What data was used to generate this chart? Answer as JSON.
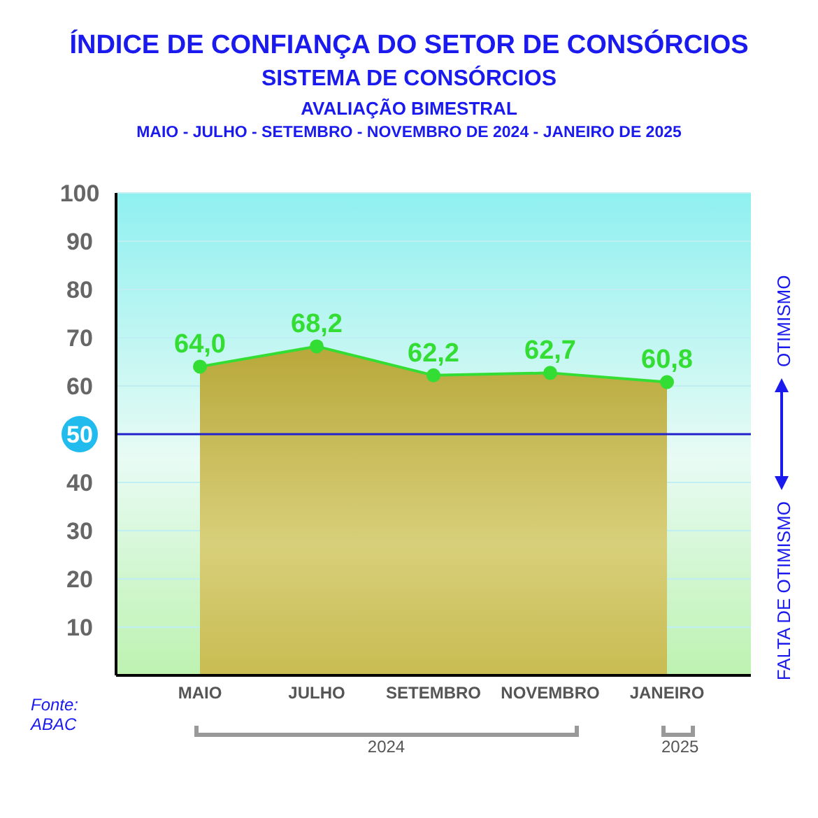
{
  "chart_data": {
    "type": "area",
    "title": "ÍNDICE DE CONFIANÇA DO SETOR DE CONSÓRCIOS",
    "subtitle": "SISTEMA DE CONSÓRCIOS",
    "categories": [
      "MAIO",
      "JULHO",
      "SETEMBRO",
      "NOVEMBRO",
      "JANEIRO"
    ],
    "series": [
      {
        "color": "#33dd33",
        "values": [
          64.0,
          68.2,
          62.2,
          62.7,
          60.8
        ],
        "value_labels": [
          "64,0",
          "68,2",
          "62,2",
          "62,7",
          "60,8"
        ]
      }
    ],
    "ylim": [
      0,
      100
    ],
    "yticks": [
      10,
      20,
      30,
      40,
      50,
      60,
      70,
      80,
      90,
      100
    ],
    "grid": "y",
    "marker": "circle",
    "line_style": "solid",
    "legend": false,
    "ref_lines": [
      {
        "axis": "y",
        "value": 50,
        "color": "#2222cc"
      }
    ],
    "annotations": [
      "AVALIAÇÃO BIMESTRAL",
      "MAIO - JULHO - SETEMBRO - NOVEMBRO DE 2024 - JANEIRO DE 2025",
      "OTIMISMO",
      "FALTA DE OTIMISMO",
      "2024",
      "2025",
      "Fonte: ABAC"
    ]
  }
}
